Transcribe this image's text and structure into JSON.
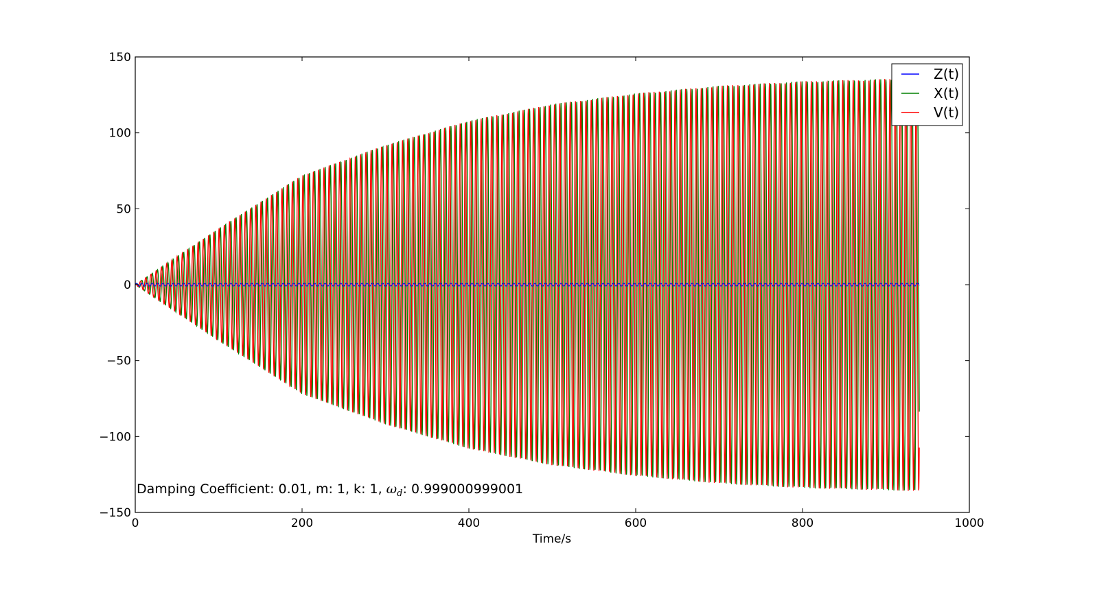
{
  "chart_data": {
    "type": "line",
    "xlabel": "Time/s",
    "ylabel": "",
    "xlim": [
      0,
      1000
    ],
    "ylim": [
      -150,
      150
    ],
    "xticks": [
      0,
      200,
      400,
      600,
      800,
      1000
    ],
    "xtick_labels": [
      "0",
      "200",
      "400",
      "600",
      "800",
      "1000"
    ],
    "yticks": [
      150,
      100,
      50,
      0,
      -50,
      -100,
      -150
    ],
    "ytick_labels": [
      "150",
      "100",
      "50",
      "0",
      "−50",
      "−100",
      "−150"
    ],
    "grid": false,
    "legend_position": "top-right",
    "annotation": {
      "prefix": "Damping Coefficient: 0.01, m: 1, k: 1, ",
      "symbol": "ω",
      "subscript": "d",
      "suffix": ": 0.999000999001"
    },
    "series": [
      {
        "name": "Z(t)",
        "color": "#0000ff",
        "description_of_shape": "small oscillation around zero",
        "x": [
          0,
          940
        ],
        "amplitude_envelope": [
          [
            0,
            1
          ],
          [
            940,
            1
          ]
        ]
      },
      {
        "name": "X(t)",
        "color": "#008000",
        "x": [
          0,
          940
        ],
        "amplitude_envelope": [
          [
            0,
            0
          ],
          [
            100,
            37
          ],
          [
            200,
            72
          ],
          [
            300,
            92
          ],
          [
            400,
            108
          ],
          [
            500,
            119
          ],
          [
            600,
            126
          ],
          [
            700,
            131
          ],
          [
            800,
            134
          ],
          [
            940,
            136
          ]
        ]
      },
      {
        "name": "V(t)",
        "color": "#ff0000",
        "x": [
          0,
          940
        ],
        "amplitude_envelope": [
          [
            0,
            0
          ],
          [
            100,
            37
          ],
          [
            200,
            72
          ],
          [
            300,
            92
          ],
          [
            400,
            108
          ],
          [
            500,
            119
          ],
          [
            600,
            126
          ],
          [
            700,
            131
          ],
          [
            800,
            134
          ],
          [
            940,
            136
          ]
        ]
      }
    ],
    "x_end": 940,
    "period": 6.2832
  }
}
